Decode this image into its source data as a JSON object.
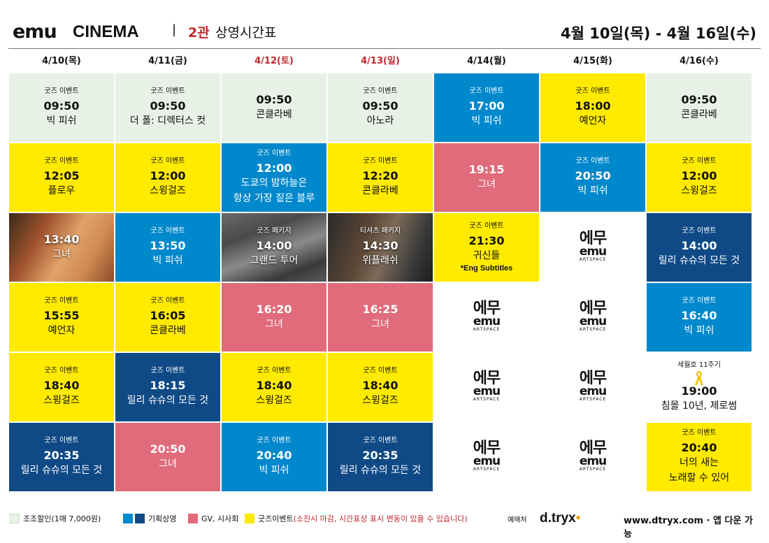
{
  "header": {
    "logo": "emu",
    "cinema": "CINEMA",
    "separator": "|",
    "hall": "2관",
    "subtitle": "상영시간표",
    "date_range": "4월 10일(목) - 4월 16일(수)"
  },
  "days": [
    {
      "label": "4/10(목)",
      "red": false
    },
    {
      "label": "4/11(금)",
      "red": false
    },
    {
      "label": "4/12(토)",
      "red": true
    },
    {
      "label": "4/13(일)",
      "red": true
    },
    {
      "label": "4/14(월)",
      "red": false
    },
    {
      "label": "4/15(화)",
      "red": false
    },
    {
      "label": "4/16(수)",
      "red": false
    }
  ],
  "artspace": {
    "k": "에무",
    "e": "emu",
    "a": "ARTSPACE"
  },
  "cells": [
    [
      {
        "type": "green",
        "event": "굿즈 이벤트",
        "time": "09:50",
        "movie": "빅 피쉬"
      },
      {
        "type": "yellow",
        "event": "굿즈 이벤트",
        "time": "12:05",
        "movie": "플로우"
      },
      {
        "type": "photo1",
        "event": "",
        "time": "13:40",
        "movie": "그녀"
      },
      {
        "type": "yellow",
        "event": "굿즈 이벤트",
        "time": "15:55",
        "movie": "예언자"
      },
      {
        "type": "yellow",
        "event": "굿즈 이벤트",
        "time": "18:40",
        "movie": "스윙걸즈"
      },
      {
        "type": "navy",
        "event": "굿즈 이벤트",
        "time": "20:35",
        "movie": "릴리 슈슈의 모든 것"
      }
    ],
    [
      {
        "type": "green",
        "event": "굿즈 이벤트",
        "time": "09:50",
        "movie": "더 폴: 디렉터스 컷"
      },
      {
        "type": "yellow",
        "event": "굿즈 이벤트",
        "time": "12:00",
        "movie": "스윙걸즈"
      },
      {
        "type": "blue",
        "event": "굿즈 이벤트",
        "time": "13:50",
        "movie": "빅 피쉬"
      },
      {
        "type": "yellow",
        "event": "굿즈 이벤트",
        "time": "16:05",
        "movie": "콘클라베"
      },
      {
        "type": "navy",
        "event": "굿즈 이벤트",
        "time": "18:15",
        "movie": "릴리 슈슈의 모든 것"
      },
      {
        "type": "red",
        "event": "",
        "time": "20:50",
        "movie": "그녀"
      }
    ],
    [
      {
        "type": "green",
        "event": "",
        "time": "09:50",
        "movie": "콘클라베"
      },
      {
        "type": "blue",
        "event": "굿즈 이벤트",
        "time": "12:00",
        "movie": "도쿄의 밤하늘은",
        "movie2": "항상 가장 짙은 블루"
      },
      {
        "type": "photo2",
        "event": "굿즈 패키지",
        "time": "14:00",
        "movie": "그랜드 투어"
      },
      {
        "type": "red",
        "event": "",
        "time": "16:20",
        "movie": "그녀"
      },
      {
        "type": "yellow",
        "event": "굿즈 이벤트",
        "time": "18:40",
        "movie": "스윙걸즈"
      },
      {
        "type": "blue",
        "event": "굿즈 이벤트",
        "time": "20:40",
        "movie": "빅 피쉬"
      }
    ],
    [
      {
        "type": "green",
        "event": "굿즈 이벤트",
        "time": "09:50",
        "movie": "아노라"
      },
      {
        "type": "yellow",
        "event": "굿즈 이벤트",
        "time": "12:20",
        "movie": "콘클라베"
      },
      {
        "type": "photo3",
        "event": "티셔츠 패키지",
        "time": "14:30",
        "movie": "위플래쉬"
      },
      {
        "type": "red",
        "event": "",
        "time": "16:25",
        "movie": "그녀"
      },
      {
        "type": "yellow",
        "event": "굿즈 이벤트",
        "time": "18:40",
        "movie": "스윙걸즈"
      },
      {
        "type": "navy",
        "event": "굿즈 이벤트",
        "time": "20:35",
        "movie": "릴리 슈슈의 모든 것"
      }
    ],
    [
      {
        "type": "blue",
        "event": "굿즈 이벤트",
        "time": "17:00",
        "movie": "빅 피쉬"
      },
      {
        "type": "red",
        "event": "",
        "time": "19:15",
        "movie": "그녀"
      },
      {
        "type": "yellow",
        "event": "굿즈 이벤트",
        "time": "21:30",
        "movie": "귀신들",
        "note": "*Eng Subtitles"
      },
      {
        "type": "artspace"
      },
      {
        "type": "artspace"
      },
      {
        "type": "artspace"
      }
    ],
    [
      {
        "type": "yellow",
        "event": "굿즈 이벤트",
        "time": "18:00",
        "movie": "예언자"
      },
      {
        "type": "blue",
        "event": "굿즈 이벤트",
        "time": "20:50",
        "movie": "빅 피쉬"
      },
      {
        "type": "artspace"
      },
      {
        "type": "artspace"
      },
      {
        "type": "artspace"
      },
      {
        "type": "artspace"
      }
    ],
    [
      {
        "type": "green",
        "event": "",
        "time": "09:50",
        "movie": "콘클라베"
      },
      {
        "type": "yellow",
        "event": "굿즈 이벤트",
        "time": "12:00",
        "movie": "스윙걸즈"
      },
      {
        "type": "navy",
        "event": "굿즈 이벤트",
        "time": "14:00",
        "movie": "릴리 슈슈의 모든 것"
      },
      {
        "type": "blue",
        "event": "굿즈 이벤트",
        "time": "16:40",
        "movie": "빅 피쉬"
      },
      {
        "type": "white",
        "event": "세월호 11주기",
        "ribbon": true,
        "time": "19:00",
        "movie": "침몰 10년, 제로썸"
      },
      {
        "type": "yellow",
        "event": "굿즈 이벤트",
        "time": "20:40",
        "movie": "너의 새는",
        "movie2": "노래할 수 있어"
      }
    ]
  ],
  "legend": {
    "discount": "조조할인(1매 7,000원)",
    "special": "기획상영",
    "gv": "GV, 시사회",
    "goods": "굿즈이벤트",
    "goods_note": "(소진시 마감, 시간표상 표시 변동이 있을 수 있습니다)",
    "sale_label": "예매처",
    "brand": "d.tryx",
    "url": "www.dtryx.com · 앱 다운 가능"
  },
  "colors": {
    "green": "#e8f1e6",
    "yellow": "#ffea00",
    "blue": "#0088cc",
    "navy": "#0f4a86",
    "red": "#e06b7a",
    "accent_red": "#c0262d"
  }
}
